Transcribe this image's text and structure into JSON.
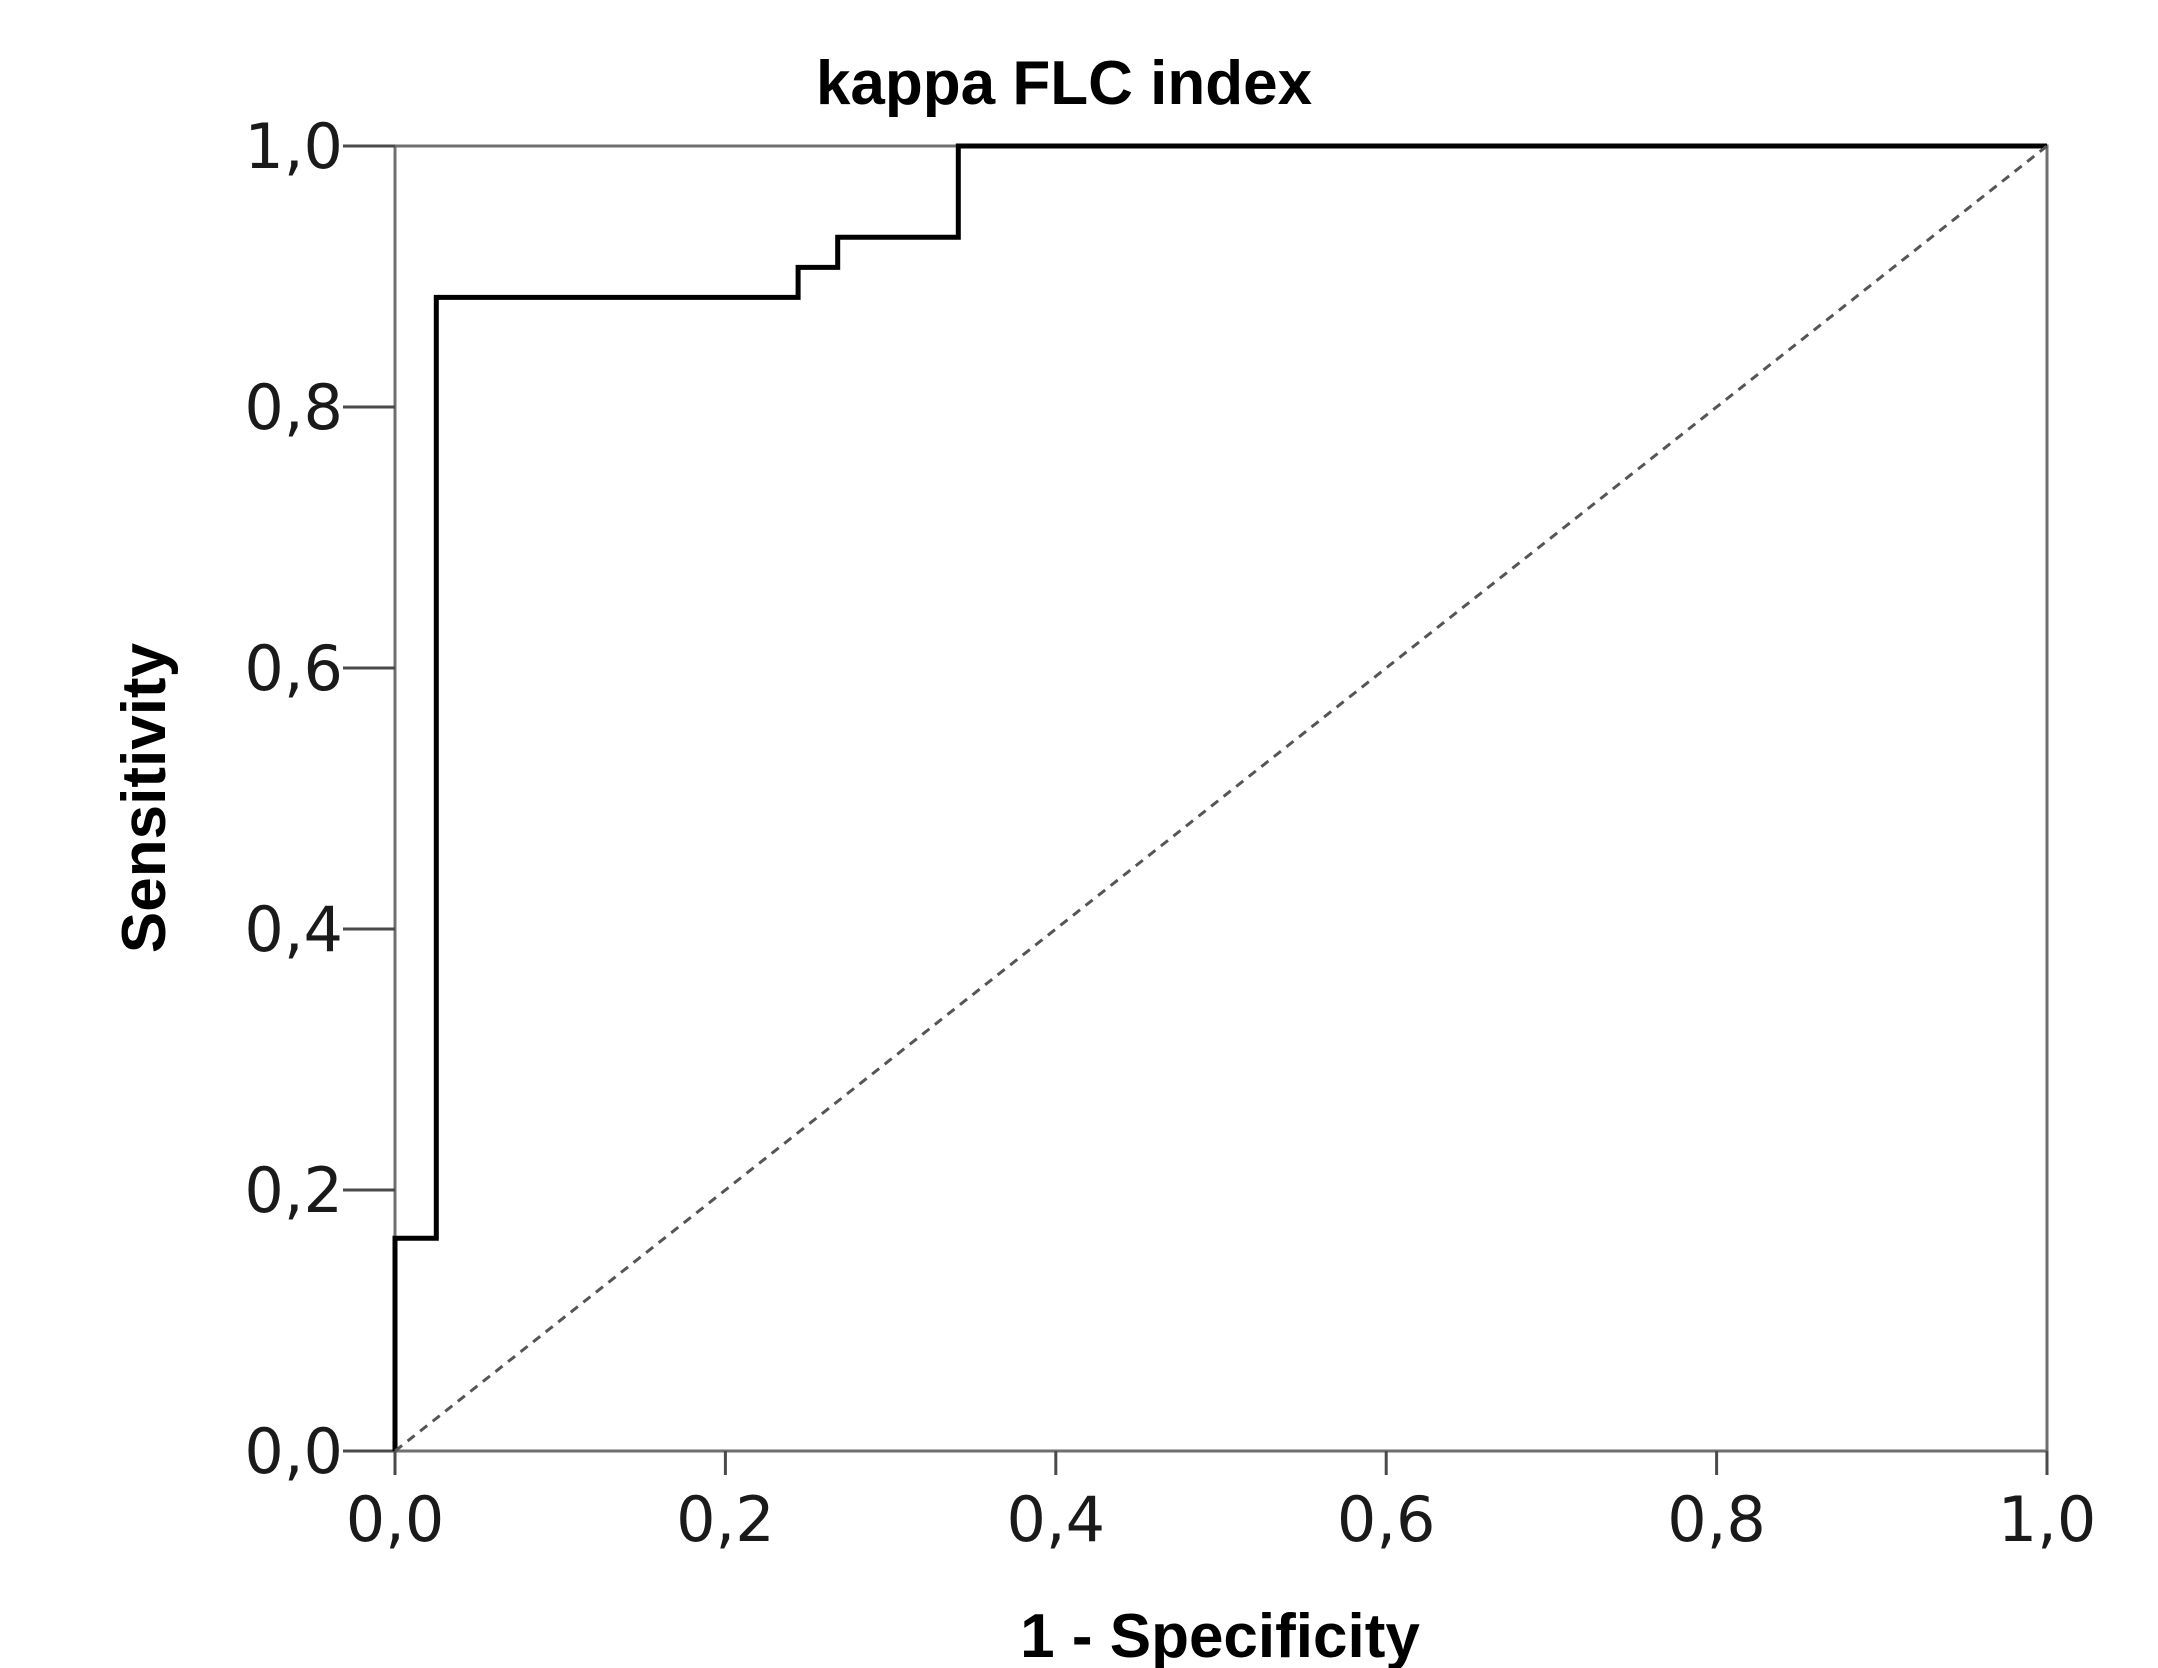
{
  "chart_data": {
    "type": "line",
    "title": "kappa FLC index",
    "xlabel": "1 - Specificity",
    "ylabel": "Sensitivity",
    "xlim": [
      0,
      1
    ],
    "ylim": [
      0,
      1
    ],
    "x_ticks": [
      0,
      0.2,
      0.4,
      0.6,
      0.8,
      1.0
    ],
    "x_tick_labels": [
      "0,0",
      "0,2",
      "0,4",
      "0,6",
      "0,8",
      "1,0"
    ],
    "y_ticks": [
      0,
      0.2,
      0.4,
      0.6,
      0.8,
      1.0
    ],
    "y_tick_labels": [
      "0,0",
      "0,2",
      "0,4",
      "0,6",
      "0,8",
      "1,0"
    ],
    "grid": false,
    "series": [
      {
        "style": "solid",
        "color": "#000000",
        "points": [
          [
            0.0,
            0.0
          ],
          [
            0.0,
            0.163
          ],
          [
            0.025,
            0.163
          ],
          [
            0.025,
            0.884
          ],
          [
            0.244,
            0.884
          ],
          [
            0.244,
            0.907
          ],
          [
            0.268,
            0.907
          ],
          [
            0.268,
            0.93
          ],
          [
            0.341,
            0.93
          ],
          [
            0.341,
            1.0
          ],
          [
            1.0,
            1.0
          ]
        ]
      },
      {
        "style": "dashed",
        "color": "#555555",
        "points": [
          [
            0.0,
            0.0
          ],
          [
            1.0,
            1.0
          ]
        ]
      }
    ]
  }
}
